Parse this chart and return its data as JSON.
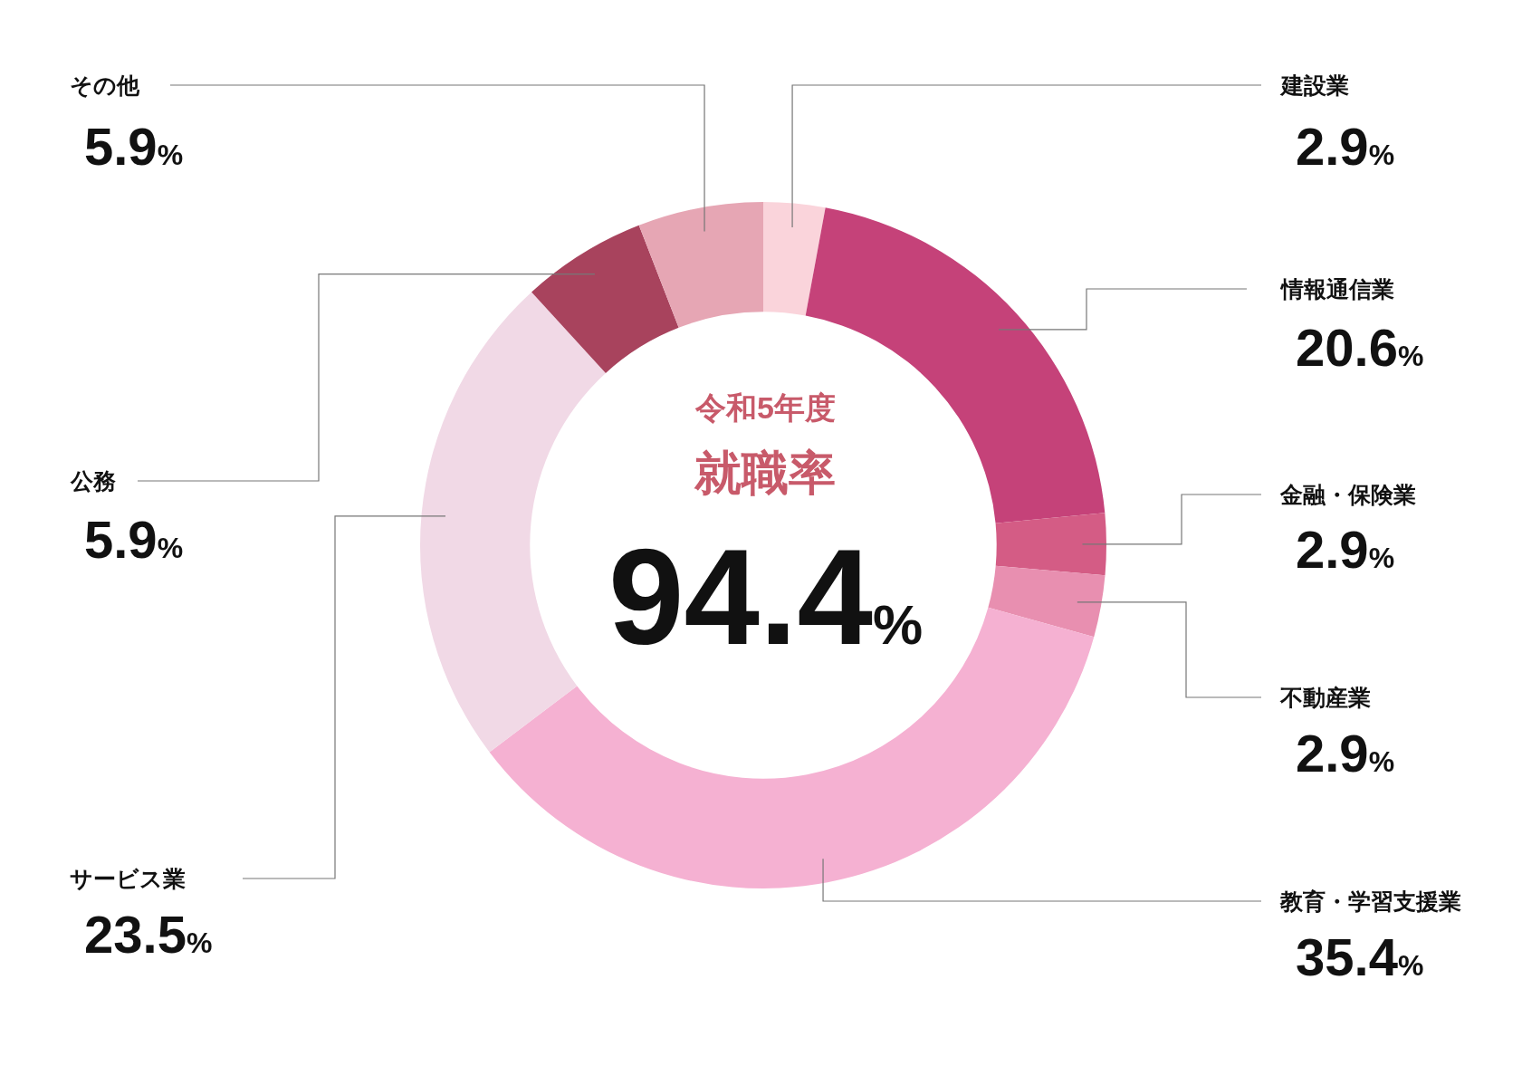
{
  "chart_data": {
    "type": "donut",
    "title": "就職率",
    "subtitle": "令和5年度",
    "categories": [
      "建設業",
      "情報通信業",
      "金融・保険業",
      "不動産業",
      "教育・学習支援業",
      "サービス業",
      "公務",
      "その他"
    ],
    "values": [
      2.9,
      20.6,
      2.9,
      2.9,
      35.4,
      23.5,
      5.9,
      5.9
    ],
    "colors": [
      "#fad4db",
      "#c54279",
      "#d45c85",
      "#e88fb0",
      "#f5b1d2",
      "#f1d9e6",
      "#a8435d",
      "#e6a6b4"
    ],
    "value_labels": [
      "2.9%",
      "20.6%",
      "2.9%",
      "2.9%",
      "35.4%",
      "23.5%",
      "5.9%",
      "5.9%"
    ],
    "annotations": [
      "94.4%"
    ],
    "legend": false
  }
}
